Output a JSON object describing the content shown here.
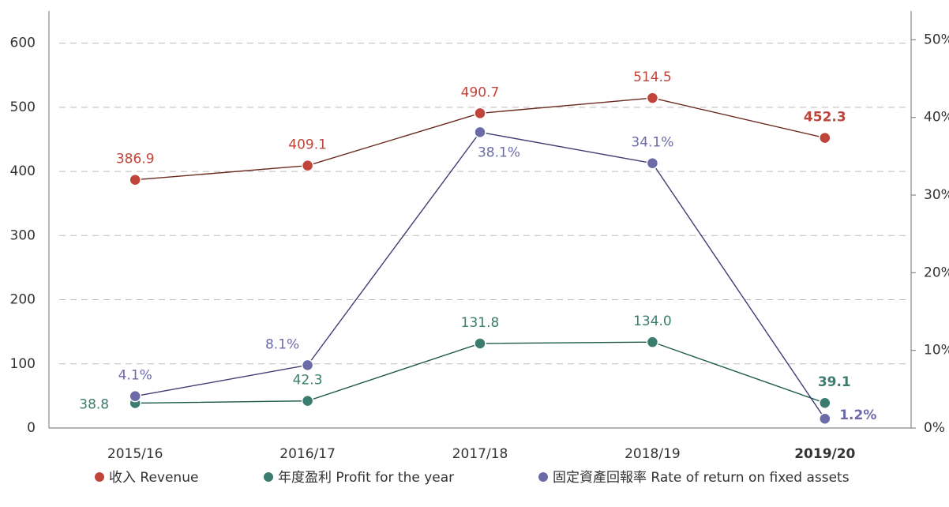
{
  "chart_data": {
    "type": "line",
    "categories": [
      "2015/16",
      "2016/17",
      "2017/18",
      "2018/19",
      "2019/20"
    ],
    "series": [
      {
        "name": "收入 Revenue",
        "color": "#c0443a",
        "line_color": "#6b2a20",
        "values": [
          386.9,
          409.1,
          490.7,
          514.5,
          452.3
        ]
      },
      {
        "name": "年度盈利 Profit for the year",
        "color": "#3a7d6e",
        "line_color": "#1f5b4d",
        "values": [
          38.8,
          42.3,
          131.8,
          134.0,
          39.1
        ],
        "value_labels": [
          "38.8",
          "42.3",
          "131.8",
          "134.0",
          "39.1"
        ]
      },
      {
        "name": "固定資產回報率 Rate of return on fixed assets",
        "color": "#6d6aa8",
        "line_color": "#3f3d70",
        "axis": "y2",
        "values": [
          4.1,
          8.1,
          38.1,
          34.1,
          1.2
        ],
        "value_labels": [
          "4.1%",
          "8.1%",
          "38.1%",
          "34.1%",
          "1.2%"
        ]
      }
    ],
    "ylim": [
      0,
      650
    ],
    "yticks": [
      0,
      100,
      200,
      300,
      400,
      500,
      600
    ],
    "y2lim": [
      0,
      53.7
    ],
    "y2ticks": [
      {
        "value": 0,
        "label": "0%"
      },
      {
        "value": 10,
        "label": "10%"
      },
      {
        "value": 20,
        "label": "20%"
      },
      {
        "value": 30,
        "label": "30%"
      },
      {
        "value": 40,
        "label": "40%"
      },
      {
        "value": 50,
        "label": "50%"
      }
    ],
    "grid": true,
    "legend": "bottom"
  }
}
